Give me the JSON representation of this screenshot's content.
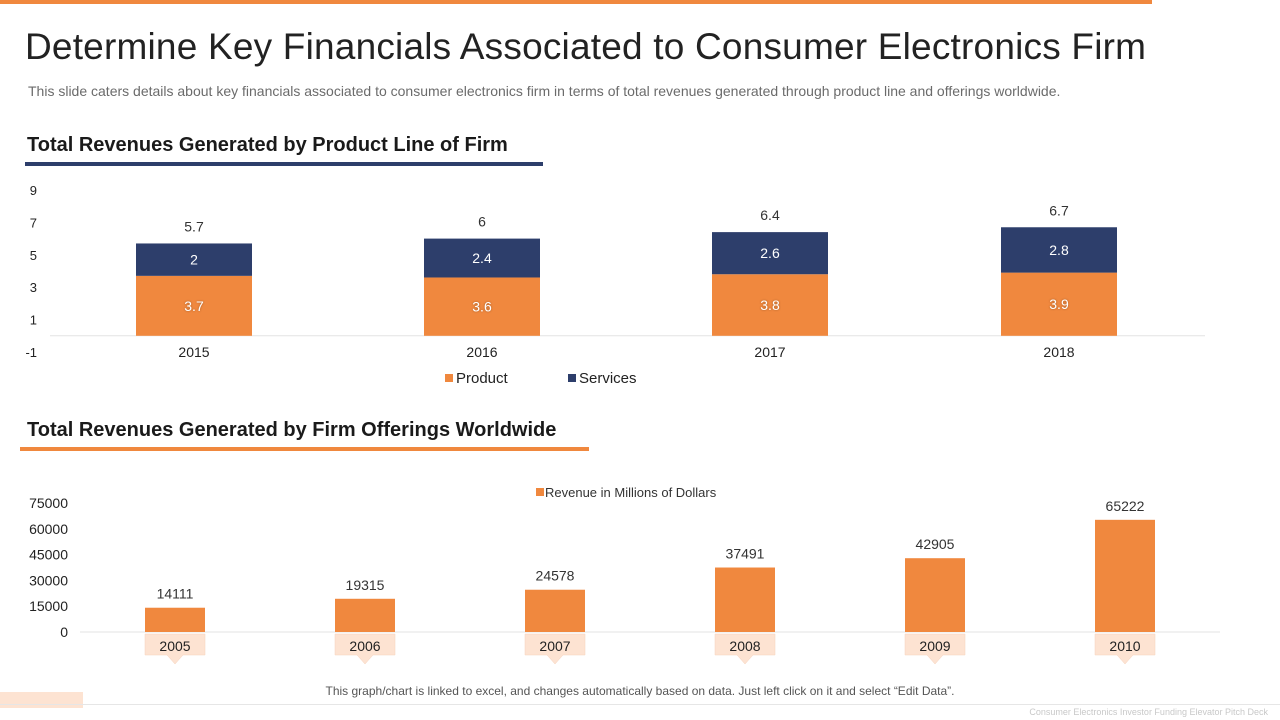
{
  "page": {
    "title": "Determine Key Financials Associated to Consumer Electronics Firm",
    "subtitle": "This slide caters details about key financials associated to consumer electronics firm in terms of total revenues generated through product line and offerings worldwide.",
    "footnote": "This graph/chart is linked to excel, and changes automatically based on data. Just left click on it and select “Edit Data”.",
    "footer_text": "Consumer Electronics Investor Funding Elevator Pitch Deck"
  },
  "colors": {
    "accent_orange": "#f0883e",
    "navy": "#2d3e6b",
    "tag_bg": "#fde3d2"
  },
  "chart_data": [
    {
      "type": "bar",
      "stacked": true,
      "title": "Total Revenues Generated by Product Line of Firm",
      "categories": [
        "2015",
        "2016",
        "2017",
        "2018"
      ],
      "series": [
        {
          "name": "Product",
          "values": [
            3.7,
            3.6,
            3.8,
            3.9
          ],
          "color": "#f0883e"
        },
        {
          "name": "Services",
          "values": [
            2,
            2.4,
            2.6,
            2.8
          ],
          "color": "#2d3e6b"
        }
      ],
      "totals": [
        5.7,
        6,
        6.4,
        6.7
      ],
      "y_ticks": [
        "9",
        "7",
        "5",
        "3",
        "1",
        "-1"
      ],
      "ylim": [
        -1,
        9
      ],
      "legend": "bottom",
      "grid": false
    },
    {
      "type": "bar",
      "title": "Total Revenues Generated by Firm Offerings Worldwide",
      "categories": [
        "2005",
        "2006",
        "2007",
        "2008",
        "2009",
        "2010"
      ],
      "series": [
        {
          "name": "Revenue in Millions of Dollars",
          "values": [
            14111,
            19315,
            24578,
            37491,
            42905,
            65222
          ],
          "color": "#f0883e"
        }
      ],
      "y_ticks": [
        "75000",
        "60000",
        "45000",
        "30000",
        "15000",
        "0"
      ],
      "ylim": [
        0,
        75000
      ],
      "legend": "top",
      "grid": false
    }
  ]
}
